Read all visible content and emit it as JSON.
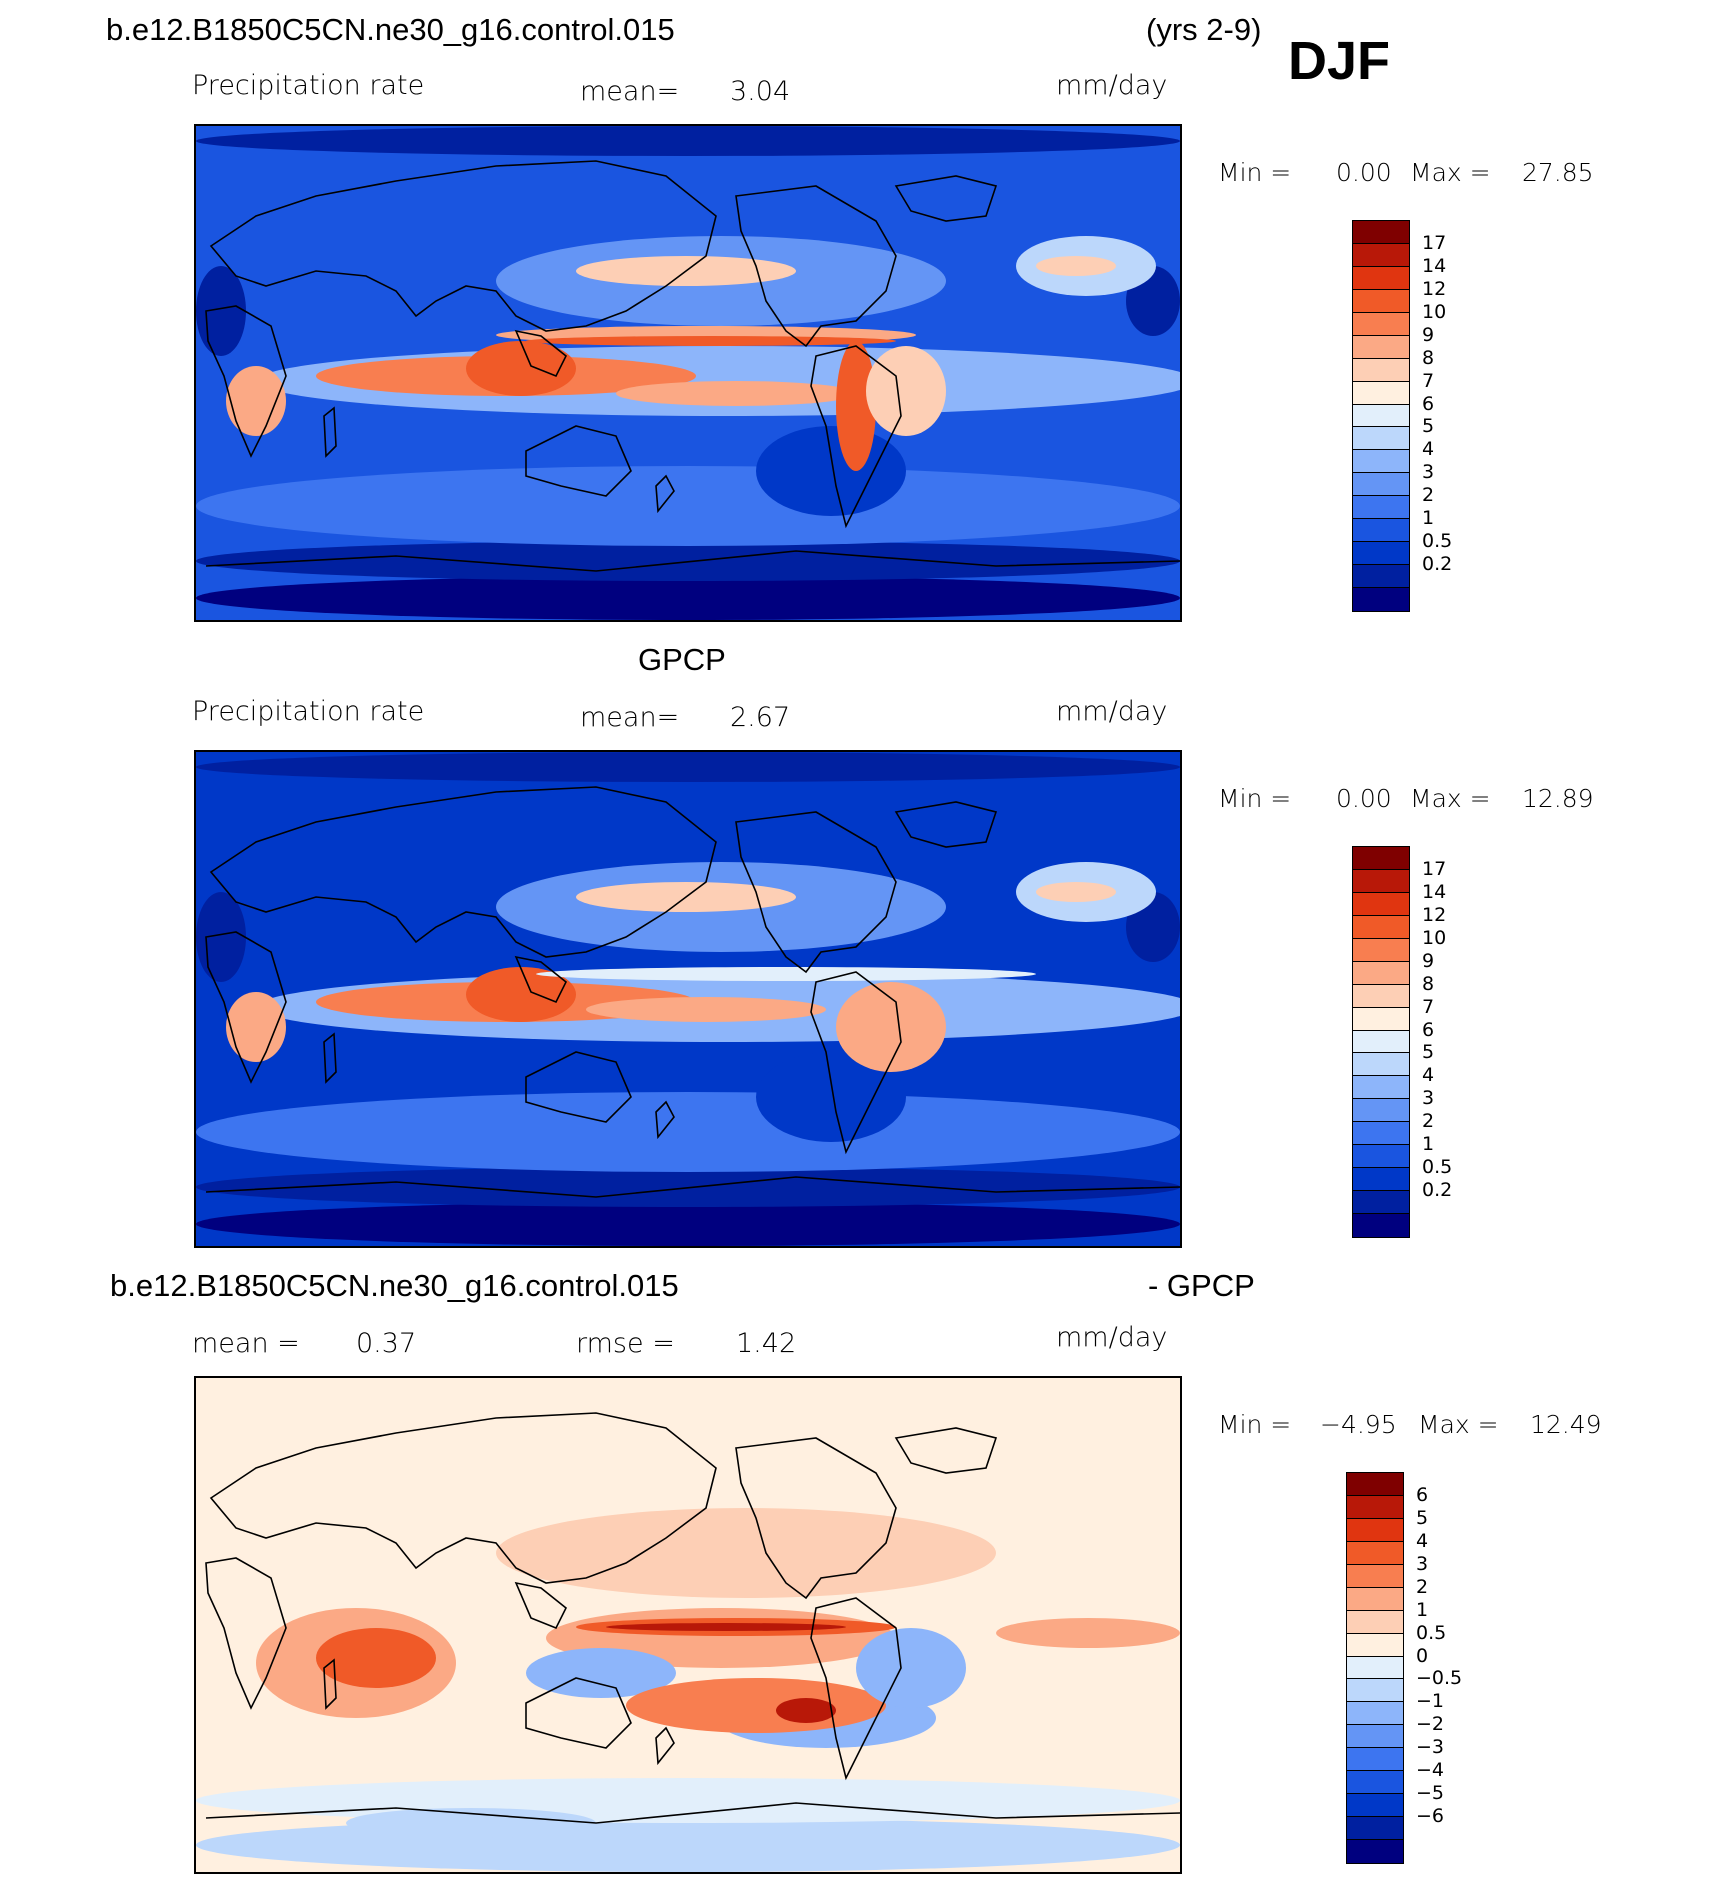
{
  "header": {
    "case_name": "b.e12.B1850C5CN.ne30_g16.control.015",
    "years": "(yrs 2-9)",
    "season": "DJF"
  },
  "colors": {
    "abs_scale": [
      "#00007f",
      "#0020a0",
      "#0038c8",
      "#1a55e0",
      "#3d75f0",
      "#6495f5",
      "#8db5fa",
      "#bcd7fb",
      "#e2effb",
      "#fff0e0",
      "#fdcfb5",
      "#fba985",
      "#f87e50",
      "#f05a28",
      "#e03510",
      "#b81808",
      "#7f0000"
    ],
    "diff_scale": [
      "#00007f",
      "#0020a0",
      "#0038c8",
      "#1a55e0",
      "#3d75f0",
      "#6495f5",
      "#8db5fa",
      "#bcd7fb",
      "#e2effb",
      "#fff0e0",
      "#fdcfb5",
      "#fba985",
      "#f87e50",
      "#f05a28",
      "#e03510",
      "#b81808",
      "#7f0000"
    ]
  },
  "panels": [
    {
      "id": "model",
      "title": "",
      "variable": "Precipitation rate",
      "stat1_label": "mean=",
      "stat1_value": "3.04",
      "units": "mm/day",
      "min_label": "Min =",
      "min_value": "0.00",
      "max_label": "Max =",
      "max_value": "27.85",
      "colorbar_labels": [
        "17",
        "14",
        "12",
        "10",
        "9",
        "8",
        "7",
        "6",
        "5",
        "4",
        "3",
        "2",
        "1",
        "0.5",
        "0.2"
      ]
    },
    {
      "id": "obs",
      "title": "GPCP",
      "variable": "Precipitation rate",
      "stat1_label": "mean=",
      "stat1_value": "2.67",
      "units": "mm/day",
      "min_label": "Min =",
      "min_value": "0.00",
      "max_label": "Max =",
      "max_value": "12.89",
      "colorbar_labels": [
        "17",
        "14",
        "12",
        "10",
        "9",
        "8",
        "7",
        "6",
        "5",
        "4",
        "3",
        "2",
        "1",
        "0.5",
        "0.2"
      ]
    },
    {
      "id": "diff",
      "title_left": "b.e12.B1850C5CN.ne30_g16.control.015",
      "title_right": "- GPCP",
      "stat1_label": "mean =",
      "stat1_value": "0.37",
      "stat2_label": "rmse =",
      "stat2_value": "1.42",
      "units": "mm/day",
      "min_label": "Min =",
      "min_value": "−4.95",
      "max_label": "Max =",
      "max_value": "12.49",
      "colorbar_labels": [
        "6",
        "5",
        "4",
        "3",
        "2",
        "1",
        "0.5",
        "0",
        "−0.5",
        "−1",
        "−2",
        "−3",
        "−4",
        "−5",
        "−6"
      ]
    }
  ]
}
